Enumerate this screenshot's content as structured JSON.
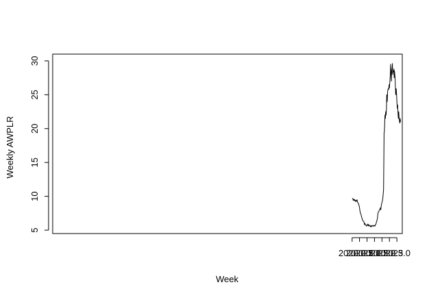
{
  "chart_data": {
    "type": "line",
    "title": "",
    "xlabel": "Week",
    "ylabel": "Weekly AWPLR",
    "xlim": [
      1999.95,
      2023.36
    ],
    "ylim": [
      4.5,
      31.0
    ],
    "xticks": [
      2020.0,
      2020.5,
      2021.0,
      2021.5,
      2022.0,
      2022.5,
      2023.0
    ],
    "xtick_labels": [
      "2020.0",
      "2020.5",
      "2021.0",
      "2021.5",
      "2022.0",
      "2022.5",
      "2023.0"
    ],
    "yticks": [
      5,
      10,
      15,
      20,
      25,
      30
    ],
    "ytick_labels": [
      "5",
      "10",
      "15",
      "20",
      "25",
      "30"
    ],
    "grid": false,
    "legend": "none",
    "line_color": "#000000",
    "series": [
      {
        "x": [
          2020.0,
          2020.03,
          2020.06,
          2020.08,
          2020.1,
          2020.12,
          2020.15,
          2020.18,
          2020.2,
          2020.22,
          2020.25,
          2020.27,
          2020.3,
          2020.33,
          2020.36,
          2020.4,
          2020.43,
          2020.46,
          2020.5,
          2020.53,
          2020.56,
          2020.6,
          2020.63,
          2020.66,
          2020.7,
          2020.73,
          2020.76,
          2020.8,
          2020.83,
          2020.86,
          2020.9,
          2020.93,
          2020.96,
          2021.0,
          2021.03,
          2021.06,
          2021.1,
          2021.13,
          2021.16,
          2021.2,
          2021.23,
          2021.26,
          2021.3,
          2021.33,
          2021.36,
          2021.4,
          2021.43,
          2021.46,
          2021.5,
          2021.53,
          2021.56,
          2021.6,
          2021.63,
          2021.66,
          2021.7,
          2021.73,
          2021.76,
          2021.8,
          2021.83,
          2021.86,
          2021.9,
          2021.92,
          2021.95,
          2021.98,
          2022.0,
          2022.03,
          2022.06,
          2022.08,
          2022.11,
          2022.14,
          2022.16,
          2022.18,
          2022.2,
          2022.23,
          2022.25,
          2022.28,
          2022.3,
          2022.32,
          2022.35,
          2022.38,
          2022.4,
          2022.42,
          2022.45,
          2022.48,
          2022.5,
          2022.53,
          2022.56,
          2022.58,
          2022.6,
          2022.63,
          2022.65,
          2022.68,
          2022.7,
          2022.72,
          2022.75,
          2022.77,
          2022.8,
          2022.82,
          2022.84,
          2022.86,
          2022.88,
          2022.9,
          2022.92,
          2022.95,
          2022.98,
          2023.0,
          2023.03,
          2023.05,
          2023.08,
          2023.1,
          2023.12,
          2023.15,
          2023.18,
          2023.2,
          2023.22,
          2023.24
        ],
        "values": [
          9.7,
          9.7,
          9.6,
          9.4,
          9.5,
          9.6,
          9.4,
          9.5,
          9.3,
          9.4,
          9.2,
          9.4,
          9.3,
          9.5,
          9.2,
          9.0,
          8.9,
          8.7,
          8.3,
          7.8,
          7.5,
          7.3,
          7.0,
          6.8,
          6.5,
          6.4,
          6.3,
          6.2,
          5.8,
          6.0,
          5.8,
          5.7,
          5.6,
          5.8,
          5.7,
          5.9,
          5.6,
          5.8,
          5.7,
          5.6,
          5.5,
          5.7,
          5.5,
          5.6,
          5.7,
          5.6,
          5.7,
          5.6,
          5.7,
          5.6,
          5.8,
          5.9,
          6.2,
          6.4,
          6.8,
          7.5,
          7.7,
          7.8,
          8.0,
          8.1,
          8.3,
          8.0,
          8.6,
          8.9,
          9.1,
          9.3,
          9.8,
          10.3,
          11.0,
          19.4,
          19.5,
          20.5,
          22.0,
          21.5,
          22.5,
          22.0,
          23.0,
          25.0,
          24.0,
          25.5,
          25.7,
          25.9,
          25.8,
          26.5,
          26.0,
          27.0,
          28.0,
          29.5,
          28.5,
          27.0,
          28.5,
          29.0,
          29.6,
          28.0,
          28.5,
          28.4,
          28.8,
          27.5,
          28.5,
          28.0,
          27.5,
          26.0,
          25.0,
          25.9,
          25.0,
          24.0,
          23.0,
          23.5,
          22.0,
          21.5,
          22.5,
          21.5,
          21.0,
          20.8,
          21.5,
          21.0
        ]
      }
    ]
  }
}
